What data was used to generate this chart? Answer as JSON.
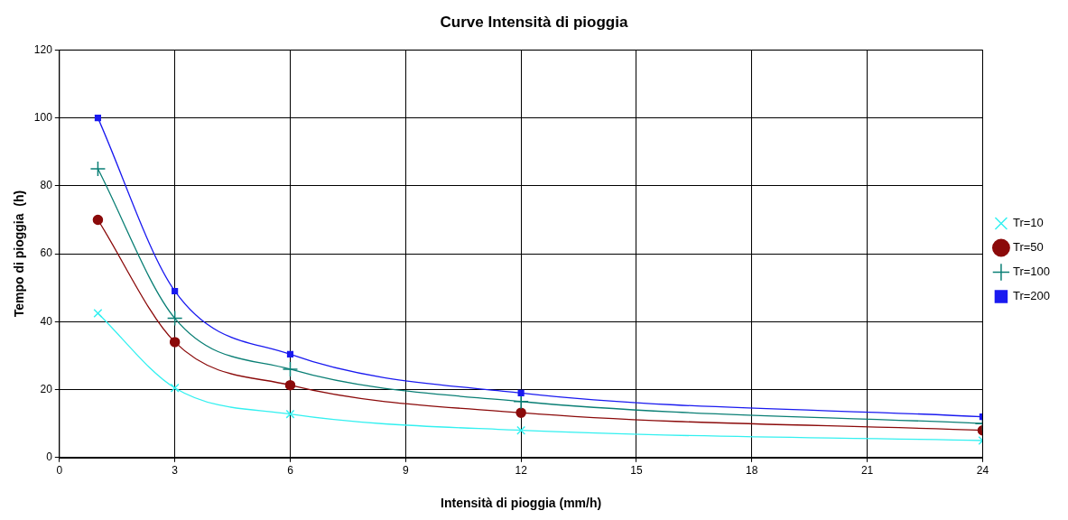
{
  "chart_data": {
    "type": "line",
    "title": "Curve Intensità di pioggia",
    "xlabel": "Intensità di pioggia (mm/h)",
    "ylabel": "Tempo di pioggia  (h)",
    "x": [
      1,
      3,
      6,
      12,
      24
    ],
    "xlim": [
      0,
      24
    ],
    "xticks": [
      0,
      3,
      6,
      9,
      12,
      15,
      18,
      21,
      24
    ],
    "ylim": [
      0,
      120
    ],
    "yticks": [
      0,
      20,
      40,
      60,
      80,
      100,
      120
    ],
    "grid": true,
    "legend": "right",
    "series": [
      {
        "name": "Tr=10",
        "color": "#33f0f0",
        "marker": "cross",
        "values": [
          42.5,
          20.5,
          12.8,
          8,
          5
        ]
      },
      {
        "name": "Tr=50",
        "color": "#8b0a0a",
        "marker": "circle",
        "values": [
          70,
          34,
          21.3,
          13.2,
          8
        ]
      },
      {
        "name": "Tr=100",
        "color": "#0a7f75",
        "marker": "plus",
        "values": [
          85,
          41,
          26,
          16.5,
          10
        ]
      },
      {
        "name": "Tr=200",
        "color": "#1a1af0",
        "marker": "square",
        "values": [
          100,
          49,
          30.4,
          19,
          12
        ]
      }
    ]
  }
}
